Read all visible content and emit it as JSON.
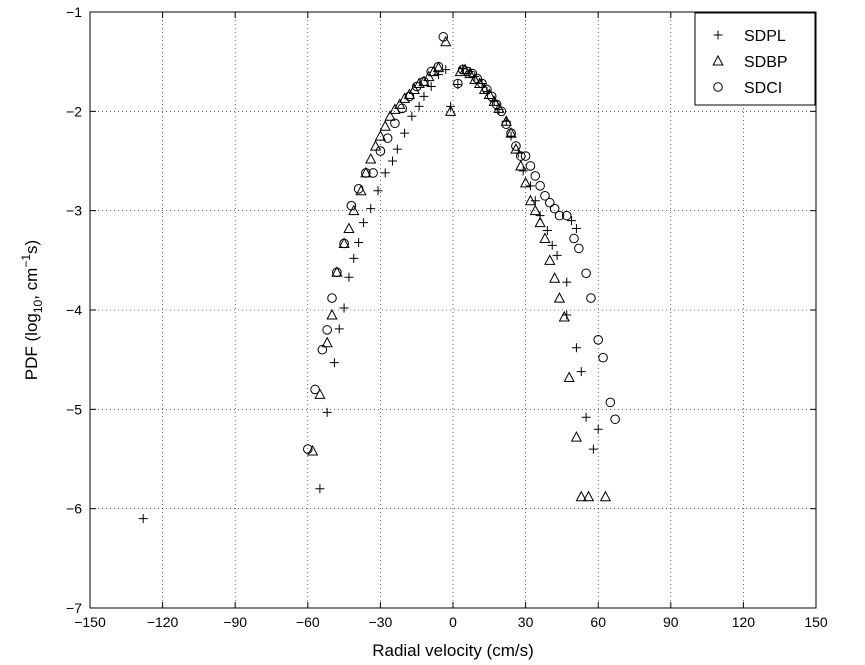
{
  "chart_data": {
    "type": "scatter",
    "xlabel": "Radial velocity (cm/s)",
    "ylabel": {
      "prefix": "PDF (log",
      "sub": "10",
      "mid": ", cm",
      "sup": "−1",
      "suffix": "s)"
    },
    "xlim": [
      -150,
      150
    ],
    "ylim": [
      -7,
      -1
    ],
    "xticks": [
      -150,
      -120,
      -90,
      -60,
      -30,
      0,
      30,
      60,
      90,
      120,
      150
    ],
    "yticks": [
      -1,
      -2,
      -3,
      -4,
      -5,
      -6,
      -7
    ],
    "xtick_labels": [
      "−150",
      "−120",
      "−90",
      "−60",
      "−30",
      "0",
      "30",
      "60",
      "90",
      "120",
      "150"
    ],
    "ytick_labels": [
      "−1",
      "−2",
      "−3",
      "−4",
      "−5",
      "−6",
      "−7"
    ],
    "grid": true,
    "legend_position": "top-right",
    "series": [
      {
        "name": "SDPL",
        "marker": "plus",
        "points": [
          [
            -128,
            -6.1
          ],
          [
            -55,
            -5.8
          ],
          [
            -52,
            -5.03
          ],
          [
            -49,
            -4.53
          ],
          [
            -47,
            -4.19
          ],
          [
            -45,
            -3.98
          ],
          [
            -43,
            -3.67
          ],
          [
            -41,
            -3.48
          ],
          [
            -39,
            -3.32
          ],
          [
            -37,
            -3.12
          ],
          [
            -34,
            -2.98
          ],
          [
            -31,
            -2.8
          ],
          [
            -28,
            -2.62
          ],
          [
            -25,
            -2.5
          ],
          [
            -23,
            -2.38
          ],
          [
            -20,
            -2.22
          ],
          [
            -17,
            -2.05
          ],
          [
            -14,
            -1.95
          ],
          [
            -12,
            -1.85
          ],
          [
            -9,
            -1.75
          ],
          [
            -6,
            -1.63
          ],
          [
            -3,
            -1.58
          ],
          [
            -1,
            -1.95
          ],
          [
            2,
            -1.73
          ],
          [
            4,
            -1.57
          ],
          [
            7,
            -1.6
          ],
          [
            9,
            -1.65
          ],
          [
            12,
            -1.72
          ],
          [
            14,
            -1.8
          ],
          [
            17,
            -1.9
          ],
          [
            19,
            -1.98
          ],
          [
            22,
            -2.1
          ],
          [
            24,
            -2.25
          ],
          [
            27,
            -2.42
          ],
          [
            29,
            -2.6
          ],
          [
            32,
            -2.75
          ],
          [
            34,
            -2.9
          ],
          [
            36,
            -3.05
          ],
          [
            39,
            -3.2
          ],
          [
            41,
            -3.35
          ],
          [
            43,
            -3.45
          ],
          [
            47,
            -3.72
          ],
          [
            47,
            -4.05
          ],
          [
            49,
            -3.1
          ],
          [
            51,
            -3.18
          ],
          [
            51,
            -4.38
          ],
          [
            53,
            -4.62
          ],
          [
            55,
            -5.08
          ],
          [
            58,
            -5.4
          ],
          [
            60,
            -5.2
          ]
        ]
      },
      {
        "name": "SDBP",
        "marker": "triangle",
        "points": [
          [
            -58,
            -5.42
          ],
          [
            -55,
            -4.85
          ],
          [
            -52,
            -4.33
          ],
          [
            -50,
            -4.05
          ],
          [
            -48,
            -3.62
          ],
          [
            -45,
            -3.33
          ],
          [
            -43,
            -3.18
          ],
          [
            -41,
            -3.0
          ],
          [
            -38,
            -2.8
          ],
          [
            -36,
            -2.62
          ],
          [
            -34,
            -2.48
          ],
          [
            -32,
            -2.35
          ],
          [
            -30,
            -2.25
          ],
          [
            -28,
            -2.15
          ],
          [
            -26,
            -2.05
          ],
          [
            -24,
            -1.98
          ],
          [
            -22,
            -1.93
          ],
          [
            -20,
            -1.87
          ],
          [
            -18,
            -1.83
          ],
          [
            -16,
            -1.78
          ],
          [
            -14,
            -1.72
          ],
          [
            -12,
            -1.7
          ],
          [
            -10,
            -1.65
          ],
          [
            -8,
            -1.6
          ],
          [
            -6,
            -1.56
          ],
          [
            -3,
            -1.3
          ],
          [
            -1,
            -2.0
          ],
          [
            3,
            -1.6
          ],
          [
            5,
            -1.58
          ],
          [
            7,
            -1.62
          ],
          [
            9,
            -1.68
          ],
          [
            11,
            -1.72
          ],
          [
            13,
            -1.78
          ],
          [
            15,
            -1.83
          ],
          [
            17,
            -1.9
          ],
          [
            19,
            -1.97
          ],
          [
            22,
            -2.1
          ],
          [
            24,
            -2.22
          ],
          [
            26,
            -2.38
          ],
          [
            28,
            -2.55
          ],
          [
            30,
            -2.72
          ],
          [
            32,
            -2.9
          ],
          [
            34,
            -3.0
          ],
          [
            36,
            -3.12
          ],
          [
            38,
            -3.28
          ],
          [
            40,
            -3.5
          ],
          [
            42,
            -3.68
          ],
          [
            44,
            -3.88
          ],
          [
            46,
            -4.07
          ],
          [
            48,
            -4.68
          ],
          [
            51,
            -5.28
          ],
          [
            53,
            -5.88
          ],
          [
            56,
            -5.88
          ],
          [
            63,
            -5.88
          ]
        ]
      },
      {
        "name": "SDCI",
        "marker": "circle",
        "points": [
          [
            -60,
            -5.4
          ],
          [
            -57,
            -4.8
          ],
          [
            -54,
            -4.4
          ],
          [
            -52,
            -4.2
          ],
          [
            -50,
            -3.88
          ],
          [
            -48,
            -3.62
          ],
          [
            -45,
            -3.33
          ],
          [
            -42,
            -2.95
          ],
          [
            -39,
            -2.78
          ],
          [
            -36,
            -2.62
          ],
          [
            -33,
            -2.62
          ],
          [
            -30,
            -2.4
          ],
          [
            -27,
            -2.27
          ],
          [
            -24,
            -2.12
          ],
          [
            -21,
            -1.97
          ],
          [
            -18,
            -1.85
          ],
          [
            -15,
            -1.75
          ],
          [
            -12,
            -1.7
          ],
          [
            -9,
            -1.6
          ],
          [
            -6,
            -1.55
          ],
          [
            -4,
            -1.25
          ],
          [
            2,
            -1.72
          ],
          [
            4,
            -1.58
          ],
          [
            6,
            -1.6
          ],
          [
            8,
            -1.62
          ],
          [
            10,
            -1.67
          ],
          [
            12,
            -1.72
          ],
          [
            14,
            -1.78
          ],
          [
            16,
            -1.85
          ],
          [
            18,
            -1.93
          ],
          [
            20,
            -2.0
          ],
          [
            22,
            -2.13
          ],
          [
            24,
            -2.22
          ],
          [
            26,
            -2.35
          ],
          [
            28,
            -2.45
          ],
          [
            30,
            -2.45
          ],
          [
            32,
            -2.55
          ],
          [
            34,
            -2.65
          ],
          [
            36,
            -2.75
          ],
          [
            38,
            -2.85
          ],
          [
            40,
            -2.92
          ],
          [
            42,
            -2.98
          ],
          [
            44,
            -3.05
          ],
          [
            47,
            -3.05
          ],
          [
            50,
            -3.28
          ],
          [
            52,
            -3.38
          ],
          [
            55,
            -3.63
          ],
          [
            57,
            -3.88
          ],
          [
            60,
            -4.3
          ],
          [
            62,
            -4.48
          ],
          [
            65,
            -4.93
          ],
          [
            67,
            -5.1
          ]
        ]
      }
    ]
  }
}
